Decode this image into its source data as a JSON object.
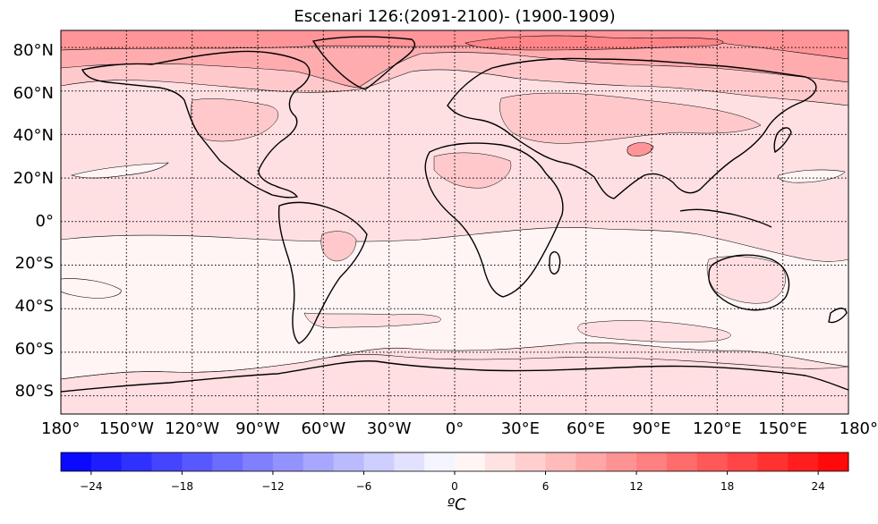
{
  "title": "Escenari 126:(2091-2100)- (1900-1909)",
  "lat_labels": [
    {
      "text": "80°N",
      "value": 80
    },
    {
      "text": "60°N",
      "value": 60
    },
    {
      "text": "40°N",
      "value": 40
    },
    {
      "text": "20°N",
      "value": 20
    },
    {
      "text": "0°",
      "value": 0
    },
    {
      "text": "20°S",
      "value": -20
    },
    {
      "text": "40°S",
      "value": -40
    },
    {
      "text": "60°S",
      "value": -60
    },
    {
      "text": "80°S",
      "value": -80
    }
  ],
  "lon_labels": [
    {
      "text": "180°",
      "value": -180
    },
    {
      "text": "150°W",
      "value": -150
    },
    {
      "text": "120°W",
      "value": -120
    },
    {
      "text": "90°W",
      "value": -90
    },
    {
      "text": "60°W",
      "value": -60
    },
    {
      "text": "30°W",
      "value": -30
    },
    {
      "text": "0°",
      "value": 0
    },
    {
      "text": "30°E",
      "value": 30
    },
    {
      "text": "60°E",
      "value": 60
    },
    {
      "text": "90°E",
      "value": 90
    },
    {
      "text": "120°E",
      "value": 120
    },
    {
      "text": "150°E",
      "value": 150
    },
    {
      "text": "180°",
      "value": 180
    }
  ],
  "colorbar": {
    "min": -26,
    "max": 26,
    "step": 2,
    "ticks": [
      {
        "text": "−24",
        "value": -24
      },
      {
        "text": "−18",
        "value": -18
      },
      {
        "text": "−12",
        "value": -12
      },
      {
        "text": "−6",
        "value": -6
      },
      {
        "text": "0",
        "value": 0
      },
      {
        "text": "6",
        "value": 6
      },
      {
        "text": "12",
        "value": 12
      },
      {
        "text": "18",
        "value": 18
      },
      {
        "text": "24",
        "value": 24
      }
    ],
    "unit": "ºC",
    "colormap": "bwr"
  },
  "map": {
    "projection": "cylindrical",
    "lon_range": [
      -180,
      180
    ],
    "lat_range": [
      -90,
      90
    ],
    "gridlines": "dotted every 30° lon and 20° lat",
    "colors": {
      "ocean_band_0_2": "#fff5f5",
      "band_2_4": "#ffdfe1",
      "band_4_6": "#ffcdd0",
      "band_6_8": "#ffb2b5",
      "band_8_10": "#ff9c9f",
      "band_10_12": "#ff8588"
    }
  }
}
